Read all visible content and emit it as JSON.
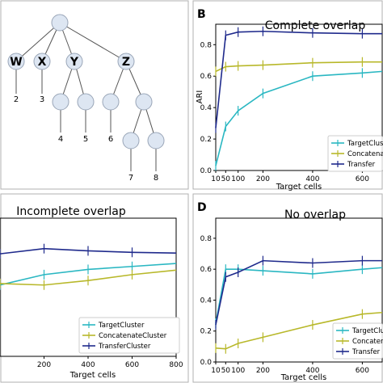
{
  "tree": {
    "labels": [
      {
        "id": "W",
        "text": "W"
      },
      {
        "id": "X",
        "text": "X"
      },
      {
        "id": "Y",
        "text": "Y"
      },
      {
        "id": "Z",
        "text": "Z"
      }
    ],
    "leaf_numbers": [
      "2",
      "3",
      "4",
      "5",
      "6",
      "7",
      "8"
    ]
  },
  "colors": {
    "TargetCluster": "#2ab7c2",
    "ConcatenateCluster": "#b8b82a",
    "TransferCluster": "#1f2a8c",
    "node_fill": "#dde6f2",
    "node_stroke": "#9aa6b8",
    "frame": "#b0b0b0"
  },
  "chart_data": [
    {
      "panel_letter": "B",
      "type": "line",
      "title": "Complete overlap",
      "xlabel": "Target cells",
      "ylabel": "ARI",
      "xticks": [
        10,
        50,
        100,
        200,
        400,
        600
      ],
      "xtick_labels": [
        "10",
        "50",
        "100",
        "200",
        "400",
        "600"
      ],
      "xlim": [
        10,
        680
      ],
      "ylim": [
        0,
        0.93
      ],
      "yticks": [
        0.0,
        0.2,
        0.4,
        0.6,
        0.8
      ],
      "ytick_labels": [
        "0.0",
        "0.2",
        "0.4",
        "0.6",
        "0.8"
      ],
      "legend_position": "lower-right",
      "legend": [
        "TargetClust",
        "Concatena",
        "Transfer"
      ],
      "series": [
        {
          "key": "TargetCluster",
          "x": [
            10,
            50,
            100,
            200,
            400,
            600,
            680
          ],
          "values": [
            0.03,
            0.28,
            0.38,
            0.49,
            0.6,
            0.62,
            0.63
          ]
        },
        {
          "key": "ConcatenateCluster",
          "x": [
            10,
            50,
            100,
            200,
            400,
            600,
            680
          ],
          "values": [
            0.63,
            0.66,
            0.665,
            0.67,
            0.685,
            0.69,
            0.69
          ]
        },
        {
          "key": "TransferCluster",
          "x": [
            10,
            50,
            100,
            200,
            400,
            600,
            680
          ],
          "values": [
            0.27,
            0.86,
            0.88,
            0.885,
            0.875,
            0.87,
            0.87
          ]
        }
      ]
    },
    {
      "panel_letter": "",
      "type": "line",
      "title": "Incomplete overlap",
      "xlabel": "Target cells",
      "ylabel": "",
      "xticks": [
        200,
        400,
        600,
        800
      ],
      "xtick_labels": [
        "200",
        "400",
        "600",
        "800"
      ],
      "xlim": [
        0,
        800
      ],
      "ylim": [
        0,
        0.93
      ],
      "yticks": [],
      "ytick_labels": [],
      "legend_position": "lower-left",
      "legend": [
        "TargetCluster",
        "ConcatenateCluster",
        "TransferCluster"
      ],
      "series": [
        {
          "key": "TargetCluster",
          "x": [
            0,
            200,
            400,
            600,
            800
          ],
          "values": [
            0.48,
            0.55,
            0.585,
            0.605,
            0.625
          ]
        },
        {
          "key": "ConcatenateCluster",
          "x": [
            0,
            200,
            400,
            600,
            800
          ],
          "values": [
            0.49,
            0.48,
            0.51,
            0.55,
            0.58
          ]
        },
        {
          "key": "TransferCluster",
          "x": [
            0,
            200,
            400,
            600,
            800
          ],
          "values": [
            0.69,
            0.725,
            0.71,
            0.7,
            0.695
          ]
        }
      ]
    },
    {
      "panel_letter": "D",
      "type": "line",
      "title": "No overlap",
      "xlabel": "Target cells",
      "ylabel": "",
      "xticks": [
        10,
        50,
        100,
        200,
        400,
        600
      ],
      "xtick_labels": [
        "10",
        "50",
        "100",
        "200",
        "400",
        "600"
      ],
      "xlim": [
        10,
        680
      ],
      "ylim": [
        0,
        0.93
      ],
      "yticks": [
        0.0,
        0.2,
        0.4,
        0.6,
        0.8
      ],
      "ytick_labels": [
        "0.0",
        "0.2",
        "0.4",
        "0.6",
        "0.8"
      ],
      "legend_position": "lower-right",
      "legend": [
        "TargetClus",
        "Concaten",
        "Transfer"
      ],
      "series": [
        {
          "key": "TargetCluster",
          "x": [
            10,
            50,
            100,
            200,
            400,
            600,
            680
          ],
          "values": [
            0.25,
            0.6,
            0.6,
            0.59,
            0.57,
            0.6,
            0.61
          ]
        },
        {
          "key": "ConcatenateCluster",
          "x": [
            10,
            50,
            100,
            200,
            400,
            600,
            680
          ],
          "values": [
            0.09,
            0.085,
            0.12,
            0.16,
            0.24,
            0.31,
            0.32
          ]
        },
        {
          "key": "TransferCluster",
          "x": [
            10,
            50,
            100,
            200,
            400,
            600,
            680
          ],
          "values": [
            0.24,
            0.55,
            0.58,
            0.655,
            0.64,
            0.655,
            0.655
          ]
        }
      ]
    }
  ]
}
